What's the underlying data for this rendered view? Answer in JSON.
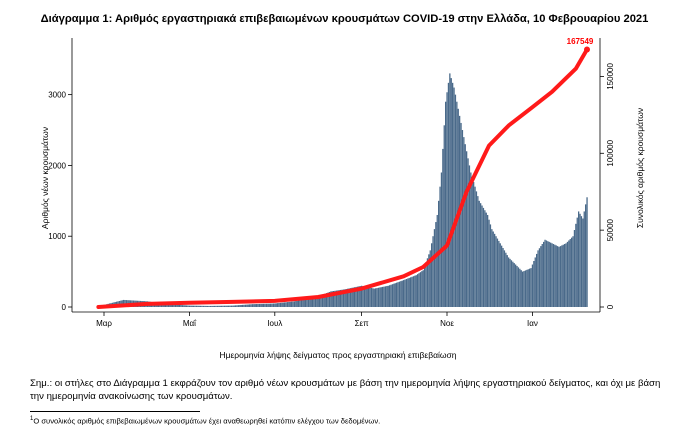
{
  "chart_data": {
    "type": "bar",
    "title": "Διάγραμμα 1: Αριθμός εργαστηριακά επιβεβαιωμένων κρουσμάτων COVID-19 στην Ελλάδα, 10 Φεβρουαρίου 2021",
    "xlabel": "Ημερομηνία λήψης δείγματος προς εργαστηριακή επιβεβαίωση",
    "ylabel_left": "Αριθμός νέων κρουσμάτων",
    "ylabel_right": "Συνολικός αριθμός κρουσμάτων",
    "x_ticks": [
      "Μαρ",
      "Μαΐ",
      "Ιουλ",
      "Σεπ",
      "Νοε",
      "Ιαν"
    ],
    "ylim_left": [
      0,
      3800
    ],
    "y_ticks_left": [
      "0",
      "1000",
      "2000",
      "3000"
    ],
    "ylim_right": [
      0,
      175000
    ],
    "y_ticks_right": [
      "0",
      "50000",
      "100000",
      "150000"
    ],
    "grid": false,
    "cumulative_label": "167549",
    "colors": {
      "bars": "#4a6a8a",
      "cumulative_line": "#ff1a1a",
      "label": "#ff0000"
    },
    "series": [
      {
        "kind": "bar",
        "axis": "left",
        "x": [
          "2020-02-26",
          "2020-03-15",
          "2020-04-01",
          "2020-04-15",
          "2020-05-01",
          "2020-05-15",
          "2020-06-01",
          "2020-06-15",
          "2020-07-01",
          "2020-07-15",
          "2020-08-01",
          "2020-08-10",
          "2020-08-20",
          "2020-09-01",
          "2020-09-10",
          "2020-09-20",
          "2020-10-01",
          "2020-10-10",
          "2020-10-15",
          "2020-10-20",
          "2020-10-25",
          "2020-10-28",
          "2020-10-31",
          "2020-11-03",
          "2020-11-06",
          "2020-11-09",
          "2020-11-12",
          "2020-11-15",
          "2020-11-18",
          "2020-11-21",
          "2020-11-24",
          "2020-11-27",
          "2020-11-30",
          "2020-12-03",
          "2020-12-06",
          "2020-12-09",
          "2020-12-12",
          "2020-12-15",
          "2020-12-20",
          "2020-12-25",
          "2020-12-31",
          "2021-01-05",
          "2021-01-10",
          "2021-01-15",
          "2021-01-20",
          "2021-01-25",
          "2021-01-30",
          "2021-02-03",
          "2021-02-06",
          "2021-02-09"
        ],
        "values": [
          10,
          100,
          80,
          40,
          20,
          15,
          20,
          40,
          50,
          80,
          150,
          220,
          250,
          300,
          260,
          300,
          380,
          450,
          520,
          800,
          1300,
          1900,
          2900,
          3300,
          3100,
          2800,
          2500,
          2200,
          1900,
          1700,
          1500,
          1400,
          1300,
          1100,
          1000,
          900,
          800,
          700,
          600,
          500,
          550,
          800,
          950,
          900,
          850,
          900,
          1000,
          1350,
          1250,
          1550
        ]
      },
      {
        "kind": "line",
        "axis": "right",
        "name": "167549",
        "x": [
          "2020-02-26",
          "2020-04-01",
          "2020-05-01",
          "2020-06-01",
          "2020-07-01",
          "2020-08-01",
          "2020-09-01",
          "2020-10-01",
          "2020-10-15",
          "2020-11-01",
          "2020-11-15",
          "2020-12-01",
          "2020-12-15",
          "2021-01-01",
          "2021-01-15",
          "2021-02-01",
          "2021-02-09"
        ],
        "values": [
          0,
          2000,
          2800,
          3300,
          4000,
          6500,
          12000,
          20000,
          26000,
          40000,
          75000,
          105000,
          118000,
          130000,
          140000,
          155000,
          167549
        ]
      }
    ]
  },
  "note": "Σημ.: οι στήλες στο Διάγραμμα 1 εκφράζουν τον αριθμό νέων κρουσμάτων με βάση την ημερομηνία λήψης εργαστηριακού δείγματος, και όχι με βάση την ημερομηνία ανακοίνωσης των κρουσμάτων.",
  "footnote": {
    "marker": "1",
    "text": "Ο συνολικός αριθμός επιβεβαιωμένων κρουσμάτων έχει αναθεωρηθεί κατόπιν ελέγχου των δεδομένων."
  }
}
